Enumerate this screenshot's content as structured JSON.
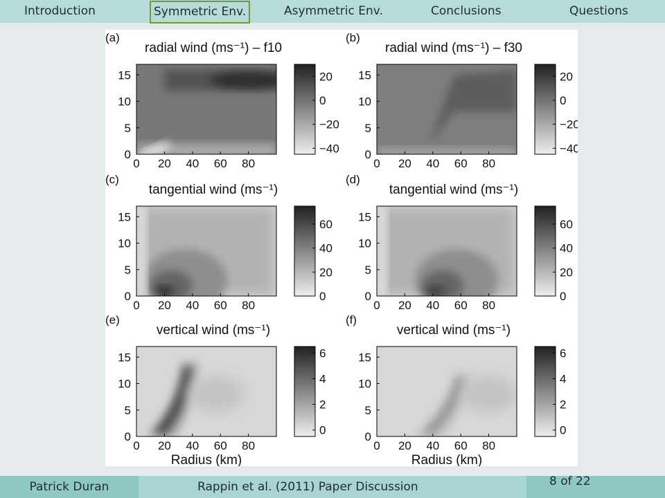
{
  "nav": {
    "items": [
      {
        "label": "Introduction",
        "active": false
      },
      {
        "label": "Symmetric Env.",
        "active": true
      },
      {
        "label": "Asymmetric Env.",
        "active": false
      },
      {
        "label": "Conclusions",
        "active": false
      },
      {
        "label": "Questions",
        "active": false
      }
    ]
  },
  "footer": {
    "author": "Patrick Duran",
    "title": "Rappin et al. (2011) Paper Discussion",
    "page": "8 of 22"
  },
  "colors": {
    "nav_bg": "#b6dbd9",
    "active_border": "#6f9c34",
    "footer_bg": "#a8d5d2",
    "footer_box": "#8fc9c4"
  },
  "chart_data": [
    {
      "type": "heatmap",
      "panel": "(a)",
      "title": "radial wind (ms⁻¹) – f10",
      "xlabel": "",
      "x_ticks": [
        "0",
        "20",
        "40",
        "60",
        "80"
      ],
      "xlim": [
        0,
        100
      ],
      "y_ticks": [
        "0",
        "5",
        "10",
        "15"
      ],
      "ylim": [
        0,
        17
      ],
      "colorbar_ticks": [
        "20",
        "0",
        "−20",
        "−40"
      ],
      "colorbar_range": [
        -45,
        30
      ],
      "features": [
        {
          "kind": "upper-outflow",
          "r_from": 20,
          "r_to": 100,
          "z": 14,
          "peak": 25
        },
        {
          "kind": "low-level-inflow",
          "r_from": 0,
          "r_to": 25,
          "z": 0.5,
          "peak": -40
        }
      ]
    },
    {
      "type": "heatmap",
      "panel": "(b)",
      "title": "radial wind (ms⁻¹) – f30",
      "xlabel": "",
      "x_ticks": [
        "0",
        "20",
        "40",
        "60",
        "80"
      ],
      "xlim": [
        0,
        100
      ],
      "y_ticks": [
        "0",
        "5",
        "10",
        "15"
      ],
      "ylim": [
        0,
        17
      ],
      "colorbar_ticks": [
        "20",
        "0",
        "−20",
        "−40"
      ],
      "colorbar_range": [
        -45,
        30
      ],
      "features": [
        {
          "kind": "weak-outflow",
          "r_from": 40,
          "r_to": 100,
          "z": 11,
          "peak": 8
        },
        {
          "kind": "low-level-inflow",
          "r_from": 0,
          "r_to": 100,
          "z": 0.3,
          "peak": -20
        }
      ]
    },
    {
      "type": "heatmap",
      "panel": "(c)",
      "title": "tangential wind (ms⁻¹)",
      "xlabel": "",
      "x_ticks": [
        "0",
        "20",
        "40",
        "60",
        "80"
      ],
      "xlim": [
        0,
        100
      ],
      "y_ticks": [
        "0",
        "5",
        "10",
        "15"
      ],
      "ylim": [
        0,
        17
      ],
      "colorbar_ticks": [
        "60",
        "40",
        "20",
        "0"
      ],
      "colorbar_range": [
        0,
        75
      ],
      "features": [
        {
          "kind": "max-wind",
          "r": 20,
          "z": 1,
          "peak": 70
        }
      ]
    },
    {
      "type": "heatmap",
      "panel": "(d)",
      "title": "tangential wind (ms⁻¹)",
      "xlabel": "",
      "x_ticks": [
        "0",
        "20",
        "40",
        "60",
        "80"
      ],
      "xlim": [
        0,
        100
      ],
      "y_ticks": [
        "0",
        "5",
        "10",
        "15"
      ],
      "ylim": [
        0,
        17
      ],
      "colorbar_ticks": [
        "60",
        "40",
        "20",
        "0"
      ],
      "colorbar_range": [
        0,
        75
      ],
      "features": [
        {
          "kind": "max-wind",
          "r": 42,
          "z": 1,
          "peak": 65
        }
      ]
    },
    {
      "type": "heatmap",
      "panel": "(e)",
      "title": "vertical wind (ms⁻¹)",
      "xlabel": "Radius (km)",
      "x_ticks": [
        "0",
        "20",
        "40",
        "60",
        "80"
      ],
      "xlim": [
        0,
        100
      ],
      "y_ticks": [
        "0",
        "5",
        "10",
        "15"
      ],
      "ylim": [
        0,
        17
      ],
      "colorbar_ticks": [
        "6",
        "4",
        "2",
        "0"
      ],
      "colorbar_range": [
        -0.5,
        6.5
      ],
      "features": [
        {
          "kind": "eyewall-updraft",
          "r_bottom": 15,
          "r_top": 32,
          "z_top": 14,
          "peak": 6
        }
      ]
    },
    {
      "type": "heatmap",
      "panel": "(f)",
      "title": "vertical wind (ms⁻¹)",
      "xlabel": "Radius (km)",
      "x_ticks": [
        "0",
        "20",
        "40",
        "60",
        "80"
      ],
      "xlim": [
        0,
        100
      ],
      "y_ticks": [
        "0",
        "5",
        "10",
        "15"
      ],
      "ylim": [
        0,
        17
      ],
      "colorbar_ticks": [
        "6",
        "4",
        "2",
        "0"
      ],
      "colorbar_range": [
        -0.5,
        6.5
      ],
      "features": [
        {
          "kind": "eyewall-updraft",
          "r_bottom": 35,
          "r_top": 55,
          "z_top": 12,
          "peak": 3
        }
      ]
    }
  ]
}
